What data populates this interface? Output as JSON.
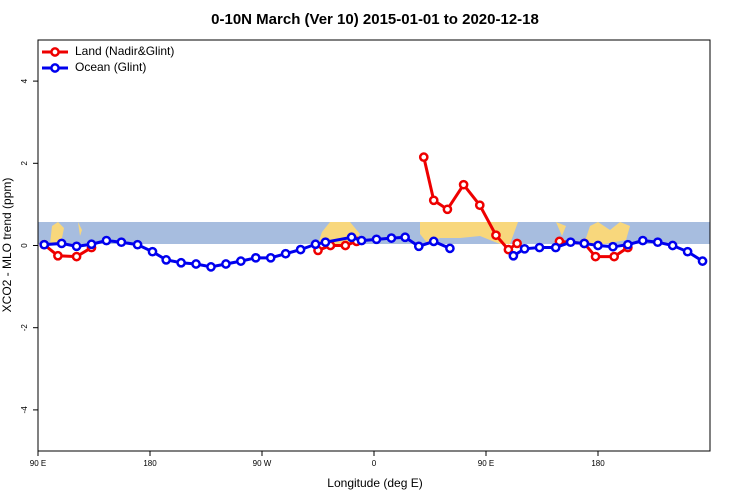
{
  "chart_data": {
    "type": "line",
    "title": "0-10N March (Ver 10)   2015-01-01 to 2020-12-18",
    "x_label": "Longitude (deg E)",
    "y_label": "XCO2 - MLO trend (ppm)",
    "xlim": [
      90,
      630
    ],
    "xticks": [
      {
        "value": 90,
        "label": "90 E"
      },
      {
        "value": 180,
        "label": "180"
      },
      {
        "value": 270,
        "label": "90 W"
      },
      {
        "value": 360,
        "label": "0"
      },
      {
        "value": 450,
        "label": "90 E"
      },
      {
        "value": 540,
        "label": "180"
      }
    ],
    "ylim": [
      -5,
      5
    ],
    "yticks": [
      -4,
      -2,
      0,
      2,
      4
    ],
    "legend": "top-left",
    "series": [
      {
        "name": "Land (Nadir&Glint)",
        "color": "#ee0000",
        "x": [
          95,
          106,
          121,
          133,
          null,
          315,
          325,
          337,
          346,
          null,
          400,
          408,
          419,
          432,
          445,
          458,
          468,
          475,
          null,
          509,
          529,
          538,
          553,
          564
        ],
        "values": [
          0.02,
          -0.25,
          -0.27,
          -0.05,
          null,
          -0.12,
          0.0,
          0.0,
          0.1,
          null,
          2.15,
          1.1,
          0.88,
          1.48,
          0.98,
          0.25,
          -0.1,
          0.05,
          null,
          0.1,
          0.05,
          -0.27,
          -0.27,
          -0.05
        ]
      },
      {
        "name": "Ocean (Glint)",
        "color": "#0000ee",
        "x": [
          95,
          109,
          121,
          133,
          145,
          157,
          170,
          182,
          193,
          205,
          217,
          229,
          241,
          253,
          265,
          277,
          289,
          301,
          313,
          321,
          342,
          350,
          362,
          374,
          385,
          396,
          408,
          421,
          null,
          472,
          481,
          493,
          506,
          518,
          529,
          540,
          552,
          564,
          576,
          588,
          600,
          612,
          624
        ],
        "values": [
          0.02,
          0.05,
          -0.02,
          0.03,
          0.12,
          0.08,
          0.02,
          -0.15,
          -0.35,
          -0.42,
          -0.45,
          -0.52,
          -0.45,
          -0.38,
          -0.3,
          -0.3,
          -0.2,
          -0.1,
          0.03,
          0.08,
          0.2,
          0.12,
          0.15,
          0.18,
          0.2,
          -0.02,
          0.1,
          -0.07,
          null,
          -0.25,
          -0.08,
          -0.05,
          -0.05,
          0.08,
          0.05,
          0.0,
          -0.03,
          0.02,
          0.12,
          0.08,
          0.0,
          -0.15,
          -0.38
        ]
      }
    ]
  }
}
